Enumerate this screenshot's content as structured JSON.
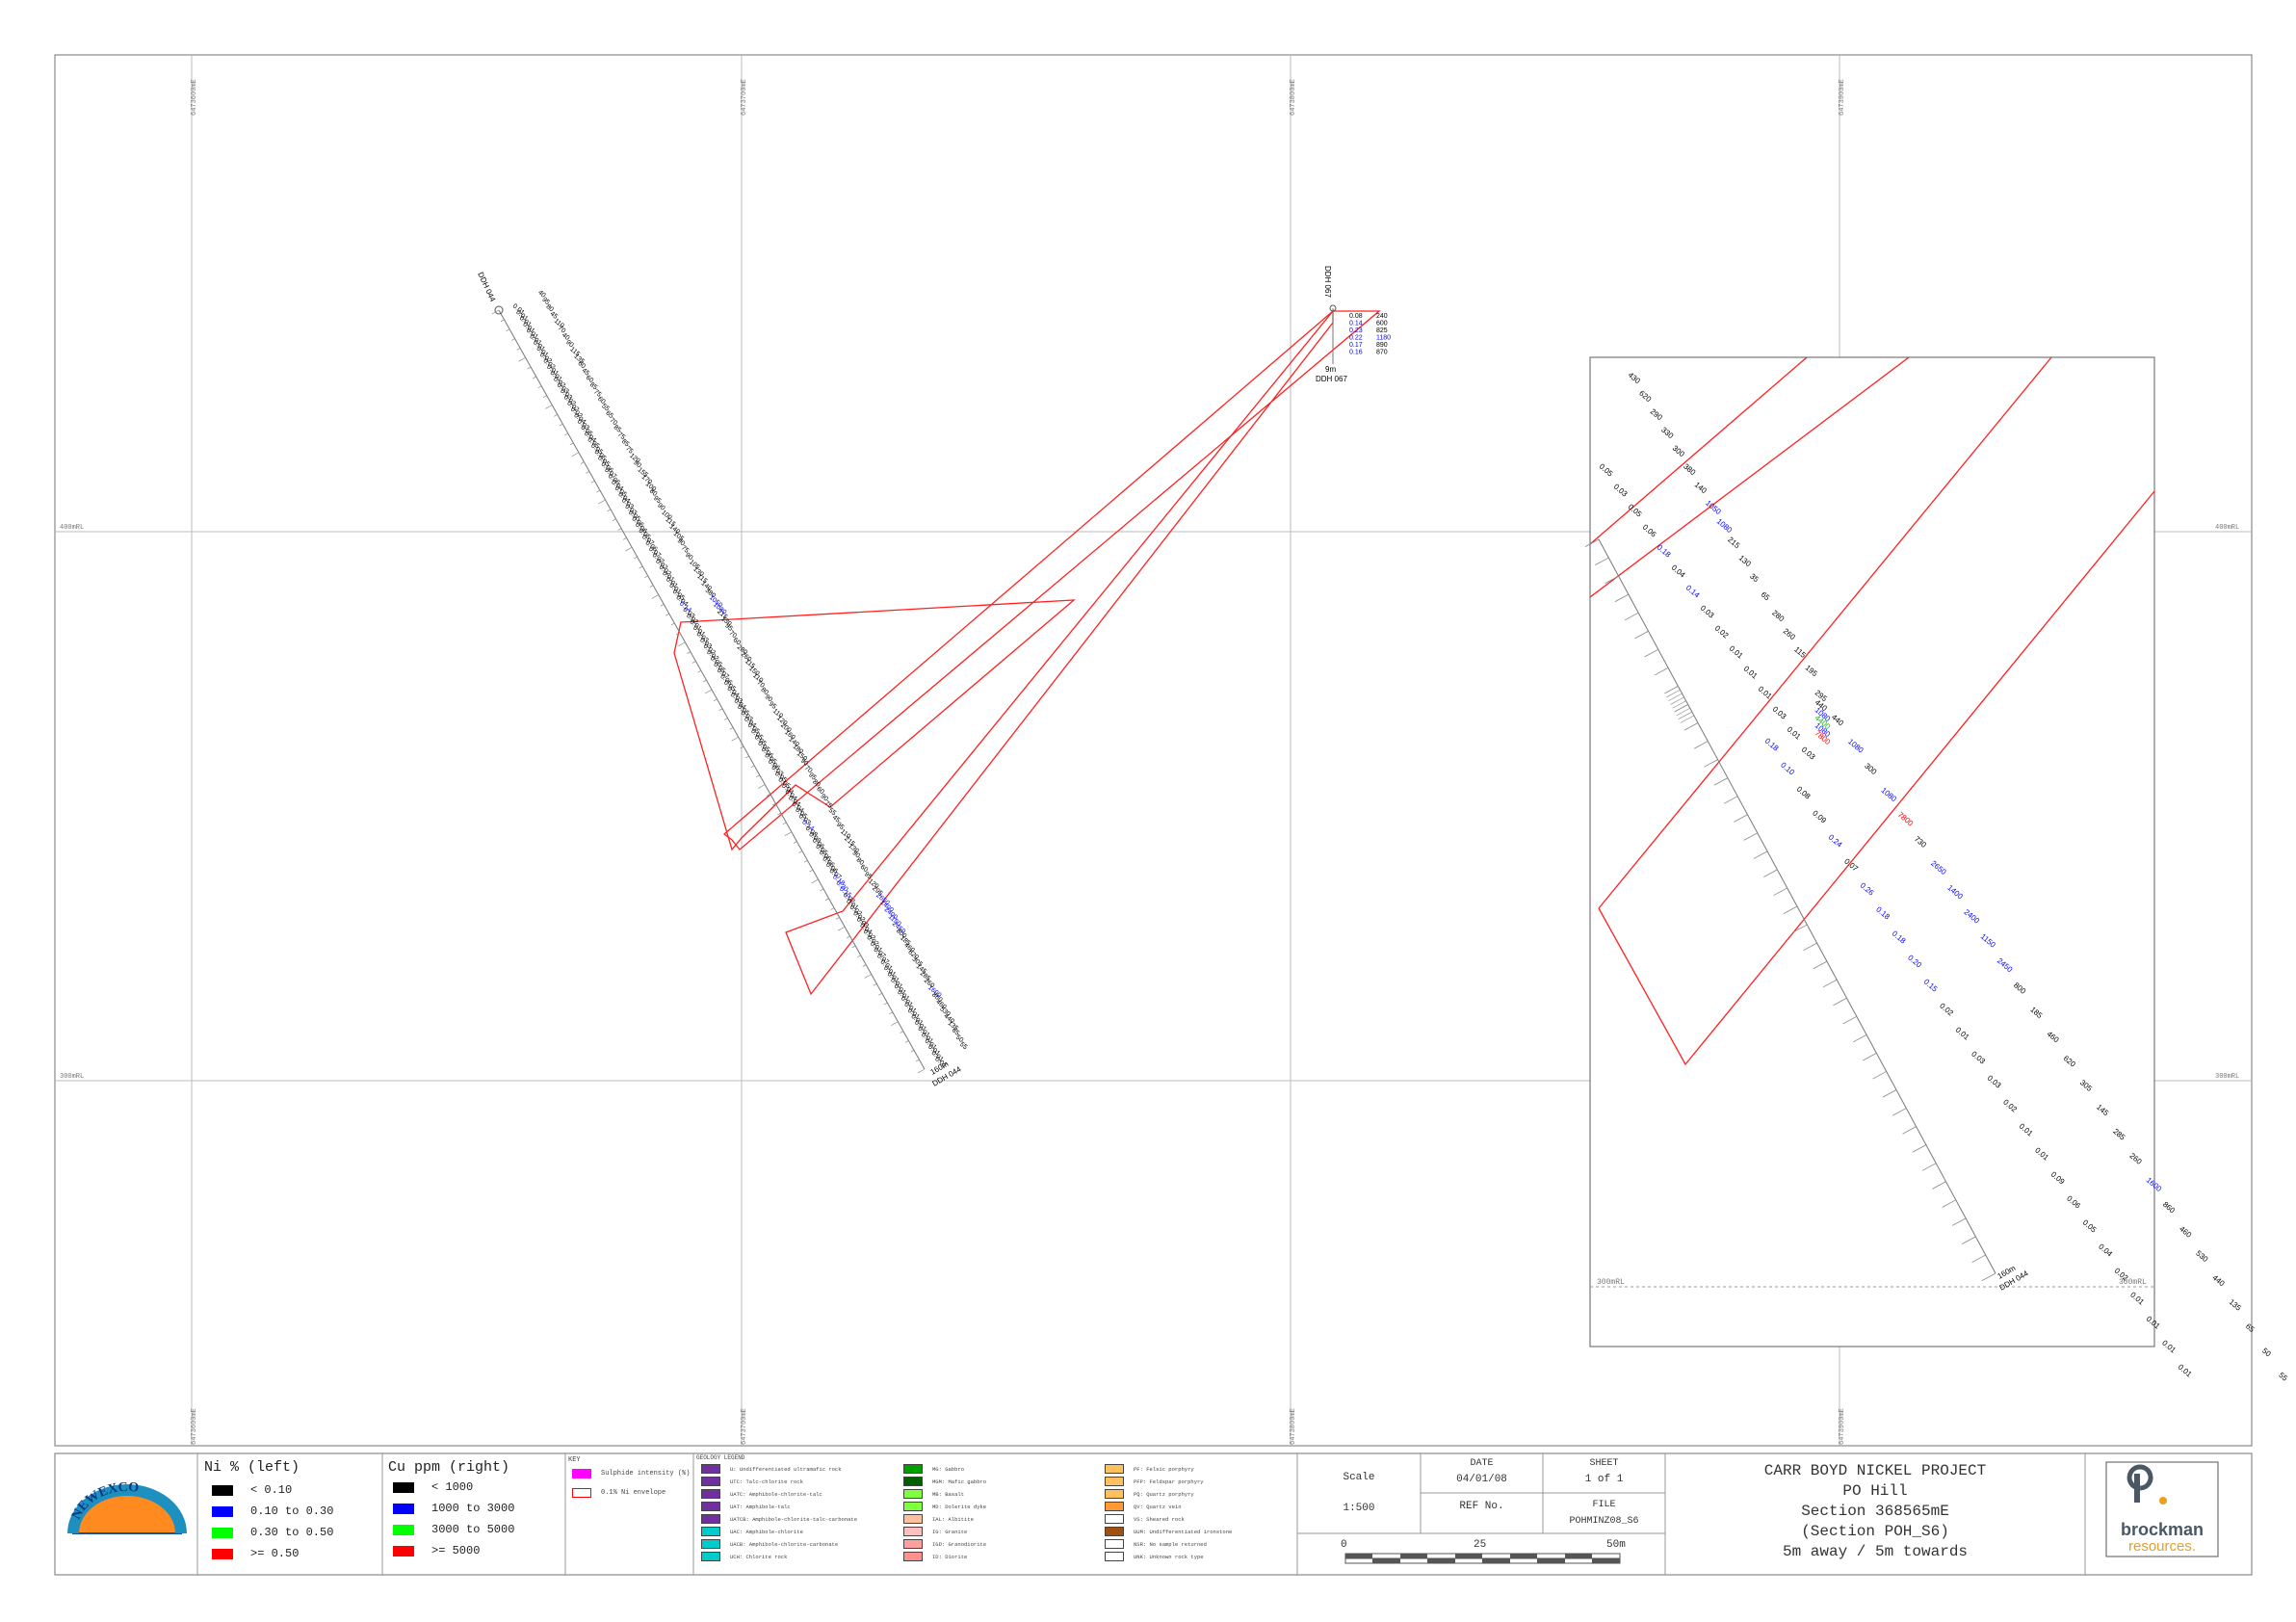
{
  "grid": {
    "easting_labels": [
      "6473600mE",
      "6473700mE",
      "6473800mE",
      "6473900mE"
    ],
    "rl_labels": [
      "400mRL",
      "300mRL"
    ]
  },
  "holes": {
    "ddh044": {
      "name": "DDH 044",
      "end_label": "160m",
      "end_name": "DDH 044",
      "ni_values": [
        "0.01",
        "0.01",
        "0.01",
        "0.01",
        "0.01",
        "0.01",
        "0.01",
        "0.01",
        "0.02",
        "0.02",
        "0.01",
        "0.01",
        "0.02",
        "0.03",
        "0.03",
        "0.02",
        "0.02",
        "0.02",
        "0.04",
        "0.03",
        "0.05",
        "0.04",
        "0.05",
        "0.05",
        "0.05",
        "0.05",
        "0.06",
        "0.07",
        "0.06",
        "0.04",
        "0.05",
        "0.04",
        "0.03",
        "0.03",
        "0.05",
        "0.06",
        "0.06",
        "0.05",
        "0.07",
        "0.06",
        "0.07",
        "0.02",
        "0.02",
        "0.02",
        "0.01",
        "0.01",
        "0.01",
        "0.05",
        "0.04",
        "0.14",
        "0.03",
        "0.02",
        "0.01",
        "0.01",
        "0.03",
        "0.03",
        "0.02",
        "0.02",
        "0.05",
        "0.05",
        "0.07",
        "0.06",
        "0.05",
        "0.04",
        "0.03",
        "0.04",
        "0.05",
        "0.03",
        "0.04",
        "0.05",
        "0.05",
        "0.05",
        "0.05",
        "0.06",
        "0.05",
        "0.06",
        "0.03",
        "0.05",
        "0.05",
        "0.04",
        "0.04",
        "0.04",
        "0.04",
        "0.05",
        "0.03",
        "0.14",
        "0.08",
        "0.09",
        "0.06",
        "0.05",
        "0.06",
        "0.06",
        "0.06",
        "0.07",
        "0.18",
        "0.20",
        "0.15",
        "0.02",
        "0.01",
        "0.02",
        "0.02",
        "0.03",
        "0.04",
        "0.02",
        "0.02",
        "0.01",
        "0.07",
        "0.07",
        "0.01",
        "0.01",
        "0.01",
        "0.01",
        "0.01",
        "0.01",
        "0.01",
        "0.01",
        "0.01",
        "0.01",
        "0.01",
        "0.01",
        "0.01",
        "0.01",
        "0.01",
        "0.01",
        "0.01"
      ],
      "cu_values": [
        "40",
        "95",
        "80",
        "45",
        "110",
        "70",
        "40",
        "90",
        "115",
        "135",
        "60",
        "45",
        "60",
        "85",
        "75",
        "60",
        "55",
        "65",
        "70",
        "85",
        "75",
        "85",
        "75",
        "120",
        "90",
        "155",
        "170",
        "100",
        "80",
        "95",
        "90",
        "100",
        "115",
        "140",
        "105",
        "90",
        "75",
        "90",
        "105",
        "130",
        "115",
        "140",
        "380",
        "1050",
        "1080",
        "215",
        "130",
        "95",
        "70",
        "60",
        "280",
        "260",
        "115",
        "150",
        "110",
        "70",
        "80",
        "90",
        "95",
        "110",
        "120",
        "200",
        "160",
        "140",
        "180",
        "150",
        "90",
        "70",
        "95",
        "80",
        "60",
        "90",
        "75",
        "55",
        "45",
        "95",
        "110",
        "215",
        "130",
        "90",
        "80",
        "60",
        "95",
        "120",
        "295",
        "2650",
        "1400",
        "2400",
        "1150",
        "2450",
        "800",
        "185",
        "460",
        "620",
        "305",
        "145",
        "285",
        "260",
        "1600",
        "860",
        "460",
        "530",
        "440",
        "135",
        "65",
        "50",
        "55"
      ],
      "ni_color_index": {
        "0.14": "blue",
        "0.18": "blue",
        "0.20": "blue",
        "0.15": "blue"
      },
      "cu_highlight": [
        {
          "value": "1050",
          "color": "blue"
        },
        {
          "value": "1080",
          "color": "blue"
        },
        {
          "value": "2650",
          "color": "blue"
        },
        {
          "value": "1400",
          "color": "blue"
        },
        {
          "value": "2400",
          "color": "blue"
        },
        {
          "value": "1150",
          "color": "blue"
        },
        {
          "value": "2450",
          "color": "blue"
        },
        {
          "value": "1600",
          "color": "blue"
        }
      ]
    },
    "ddh067": {
      "name": "DDH 067",
      "end_label": "9m",
      "end_name": "DDH 067",
      "ni_values": [
        "0.08",
        "0.14",
        "0.23",
        "0.22",
        "0.17",
        "0.16"
      ],
      "cu_values": [
        "240",
        "600",
        "825",
        "1180",
        "890",
        "870"
      ]
    }
  },
  "inset": {
    "rl_label_left": "300mRL",
    "rl_label_right": "300mRL",
    "end_label": "160m",
    "end_name": "DDH 044",
    "upper_cu": [
      "430",
      "620",
      "290",
      "330",
      "300",
      "380",
      "140",
      "1050",
      "1080",
      "215",
      "130",
      "35",
      "65",
      "280",
      "260",
      "115",
      "195"
    ],
    "upper_ni": [
      "0.05",
      "0.03",
      "0.05",
      "0.06",
      "0.18",
      "0.04",
      "0.14",
      "0.03",
      "0.02",
      "0.01",
      "0.01",
      "0.01",
      "0.03",
      "0.01",
      "0.03"
    ],
    "lower_ni": [
      "0.18",
      "0.10",
      "0.08",
      "0.09",
      "0.24",
      "0.07",
      "0.26",
      "0.18",
      "0.18",
      "0.20",
      "0.15",
      "0.02",
      "0.01",
      "0.03",
      "0.03",
      "0.02",
      "0.01",
      "0.01",
      "0.09",
      "0.06",
      "0.05",
      "0.04",
      "0.02",
      "0.01",
      "0.01",
      "0.01",
      "0.01"
    ],
    "lower_cu": [
      "295",
      "440",
      "1080",
      "300",
      "1080",
      "7800",
      "730",
      "2650",
      "1400",
      "2400",
      "1150",
      "2450",
      "800",
      "185",
      "460",
      "620",
      "305",
      "145",
      "285",
      "260",
      "1600",
      "860",
      "460",
      "530",
      "440",
      "135",
      "65",
      "50",
      "55"
    ],
    "mid_colored": [
      {
        "value": "440",
        "color": "black"
      },
      {
        "value": "1080",
        "color": "blue"
      },
      {
        "value": "4400",
        "color": "#00c000"
      },
      {
        "value": "1080",
        "color": "blue"
      },
      {
        "value": "7800",
        "color": "red"
      }
    ]
  },
  "legend_ni": {
    "title": "Ni % (left)",
    "items": [
      {
        "label": "< 0.10",
        "color": "#000000"
      },
      {
        "label": "0.10 to 0.30",
        "color": "#0000ff"
      },
      {
        "label": "0.30 to 0.50",
        "color": "#00ff00"
      },
      {
        "label": ">= 0.50",
        "color": "#ff0000"
      }
    ]
  },
  "legend_cu": {
    "title": "Cu ppm (right)",
    "items": [
      {
        "label": "< 1000",
        "color": "#000000"
      },
      {
        "label": "1000 to 3000",
        "color": "#0000ff"
      },
      {
        "label": "3000 to 5000",
        "color": "#00ff00"
      },
      {
        "label": ">= 5000",
        "color": "#ff0000"
      }
    ]
  },
  "key": {
    "title": "KEY",
    "items": [
      {
        "label": "Sulphide intensity (%)",
        "color": "#ff00ff"
      },
      {
        "label": "0.1% Ni envelope",
        "color": "#ff0000"
      }
    ]
  },
  "geology": {
    "title": "GEOLOGY LEGEND",
    "col1": [
      {
        "label": "U: Undifferentiated ultramafic rock",
        "color": "#7030a0"
      },
      {
        "label": "UTC: Talc-chlorite rock",
        "color": "#7030a0"
      },
      {
        "label": "UATC: Amphibole-chlorite-talc",
        "color": "#7030a0"
      },
      {
        "label": "UAT: Amphibole-talc",
        "color": "#7030a0"
      },
      {
        "label": "UATCB: Amphibole-chlorite-talc-carbonate",
        "color": "#7030a0"
      },
      {
        "label": "UAC: Amphibole-chlorite",
        "color": "#00cccc"
      },
      {
        "label": "UACB: Amphibole-chlorite-carbonate",
        "color": "#00cccc"
      },
      {
        "label": "UCH: Chlorite rock",
        "color": "#00cccc"
      }
    ],
    "col2": [
      {
        "label": "MG: Gabbro",
        "color": "#00a000"
      },
      {
        "label": "MGM: Mafic gabbro",
        "color": "#006000"
      },
      {
        "label": "MB: Basalt",
        "color": "#80ff40"
      },
      {
        "label": "MD: Dolerite dyke",
        "color": "#80ff40"
      },
      {
        "label": "IAL: Albitite",
        "color": "#ffc0a0"
      },
      {
        "label": "IG: Granite",
        "color": "#ffc0c0"
      },
      {
        "label": "IGD: Granodiorite",
        "color": "#ffa0a0"
      },
      {
        "label": "ID: Diorite",
        "color": "#ff9090"
      }
    ],
    "col3": [
      {
        "label": "PF: Felsic porphyry",
        "color": "#ffc060"
      },
      {
        "label": "PFP: Feldspar porphyry",
        "color": "#ffc060"
      },
      {
        "label": "PQ: Quartz porphyry",
        "color": "#ffc060"
      },
      {
        "label": "QV: Quartz vein",
        "color": "#ff9933"
      },
      {
        "label": "VS: Sheared rock",
        "color": "#ffffff"
      },
      {
        "label": "UUM: Undifferentiated ironstone",
        "color": "#a05010"
      },
      {
        "label": "NSR: No sample returned",
        "color": "#ffffff"
      },
      {
        "label": "UNK: Unknown rock type",
        "color": "#ffffff"
      }
    ]
  },
  "title_block": {
    "scale_label": "Scale",
    "scale_value": "1:500",
    "date_label": "DATE",
    "date_value": "04/01/08",
    "sheet_label": "SHEET",
    "sheet_value": "1 of 1",
    "ref_label": "REF No.",
    "file_label": "FILE",
    "file_value": "POHMINZ08_S6",
    "bar_0": "0",
    "bar_25": "25",
    "bar_50": "50m",
    "project_lines": [
      "CARR BOYD NICKEL PROJECT",
      "PO Hill",
      "Section 368565mE",
      "(Section POH_S6)",
      "5m away / 5m towards"
    ],
    "logo_left": "NEWEXCO",
    "logo_right_1": "brockman",
    "logo_right_2": "resources."
  }
}
